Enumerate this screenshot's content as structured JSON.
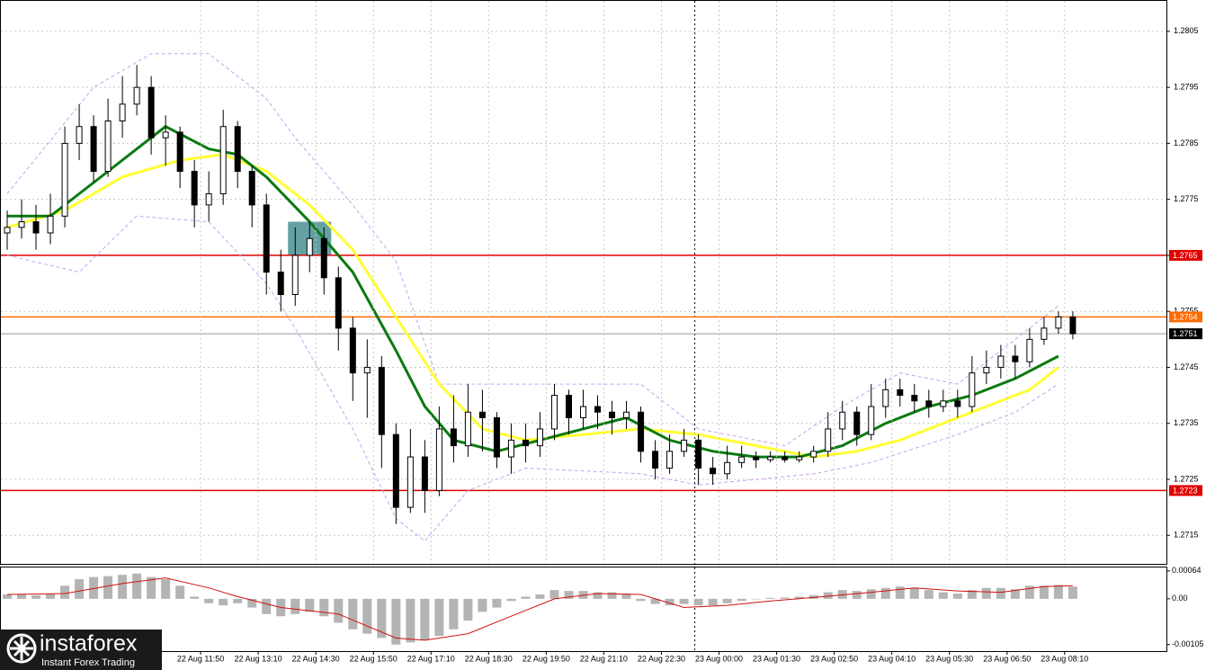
{
  "chart_data": [
    {
      "type": "candlestick",
      "xlim": [
        0,
        81
      ],
      "ylim": [
        1.27099,
        1.28106
      ],
      "yticks": [
        1.2715,
        1.2725,
        1.2735,
        1.2745,
        1.2755,
        1.2765,
        1.2775,
        1.2785,
        1.2795,
        1.2805
      ],
      "grid": true,
      "open": [
        1.2769,
        1.277,
        1.2771,
        1.2769,
        1.2772,
        1.2785,
        1.2788,
        1.278,
        1.2789,
        1.2792,
        1.2795,
        1.2786,
        1.2787,
        1.278,
        1.2774,
        1.2776,
        1.2788,
        1.278,
        1.2774,
        1.2762,
        1.2758,
        1.2765,
        1.2768,
        1.2761,
        1.2752,
        1.2744,
        1.2745,
        1.2733,
        1.272,
        1.2729,
        1.2723,
        1.2734,
        1.2731,
        1.2737,
        1.2736,
        1.2729,
        1.2732,
        1.2731,
        1.2734,
        1.274,
        1.2736,
        1.2738,
        1.2737,
        1.2736,
        1.2737,
        1.273,
        1.2727,
        1.273,
        1.2732,
        1.2727,
        1.2726,
        1.2728,
        1.2729,
        1.27285,
        1.2729,
        1.27285,
        1.2729,
        1.273,
        1.2734,
        1.2737,
        1.2733,
        1.2738,
        1.2741,
        1.274,
        1.2739,
        1.2738,
        1.2739,
        1.2738,
        1.2744,
        1.2745,
        1.2747,
        1.2746,
        1.275,
        1.2752,
        1.2754
      ],
      "high": [
        1.2773,
        1.2775,
        1.2774,
        1.2776,
        1.2788,
        1.2792,
        1.279,
        1.2793,
        1.2797,
        1.2799,
        1.2797,
        1.279,
        1.2788,
        1.2782,
        1.278,
        1.2791,
        1.2789,
        1.2781,
        1.2776,
        1.2766,
        1.277,
        1.2771,
        1.277,
        1.2763,
        1.2754,
        1.275,
        1.2747,
        1.2735,
        1.2734,
        1.2732,
        1.2738,
        1.274,
        1.2742,
        1.2741,
        1.2737,
        1.2735,
        1.2735,
        1.2737,
        1.2742,
        1.2741,
        1.2741,
        1.274,
        1.2739,
        1.2739,
        1.2738,
        1.2732,
        1.2733,
        1.2734,
        1.2733,
        1.2729,
        1.2731,
        1.2731,
        1.273,
        1.273,
        1.273,
        1.273,
        1.2731,
        1.2737,
        1.2739,
        1.2738,
        1.2742,
        1.2743,
        1.2743,
        1.2742,
        1.2741,
        1.2741,
        1.2741,
        1.2747,
        1.2748,
        1.2749,
        1.2749,
        1.2752,
        1.2754,
        1.2755,
        1.2755
      ],
      "low": [
        1.2766,
        1.2768,
        1.2766,
        1.2767,
        1.277,
        1.2782,
        1.2778,
        1.2779,
        1.2786,
        1.279,
        1.2783,
        1.2781,
        1.2777,
        1.277,
        1.2771,
        1.2774,
        1.2777,
        1.277,
        1.2758,
        1.2755,
        1.2756,
        1.2762,
        1.2758,
        1.2748,
        1.2739,
        1.2736,
        1.2727,
        1.2717,
        1.2719,
        1.2719,
        1.2722,
        1.2728,
        1.2729,
        1.273,
        1.2727,
        1.2726,
        1.2728,
        1.2729,
        1.2732,
        1.2733,
        1.2734,
        1.2734,
        1.2733,
        1.2734,
        1.2728,
        1.2725,
        1.2726,
        1.2729,
        1.2724,
        1.2724,
        1.2725,
        1.2727,
        1.2727,
        1.2728,
        1.2728,
        1.2728,
        1.2728,
        1.2729,
        1.2732,
        1.2731,
        1.2732,
        1.2736,
        1.2738,
        1.2737,
        1.2736,
        1.2737,
        1.2736,
        1.2737,
        1.2742,
        1.2743,
        1.2743,
        1.2745,
        1.2749,
        1.2751,
        1.275
      ],
      "close": [
        1.277,
        1.2771,
        1.2769,
        1.2772,
        1.2785,
        1.2788,
        1.278,
        1.2789,
        1.2792,
        1.2795,
        1.2786,
        1.2787,
        1.278,
        1.2774,
        1.2776,
        1.2788,
        1.278,
        1.2774,
        1.2762,
        1.2758,
        1.2765,
        1.2768,
        1.2761,
        1.2752,
        1.2744,
        1.2745,
        1.2733,
        1.272,
        1.2729,
        1.2723,
        1.2734,
        1.2731,
        1.2737,
        1.2736,
        1.2729,
        1.2732,
        1.2731,
        1.2734,
        1.274,
        1.2736,
        1.2738,
        1.2737,
        1.2736,
        1.2737,
        1.273,
        1.2727,
        1.273,
        1.2732,
        1.2727,
        1.2726,
        1.2728,
        1.2729,
        1.27285,
        1.2729,
        1.27285,
        1.2729,
        1.273,
        1.2734,
        1.2737,
        1.2733,
        1.2738,
        1.2741,
        1.274,
        1.2739,
        1.2738,
        1.2739,
        1.2738,
        1.2744,
        1.2745,
        1.2747,
        1.2746,
        1.275,
        1.2752,
        1.2754,
        1.2751
      ],
      "overlays": [
        {
          "color": "#c9a0f0",
          "dashed": true,
          "x": [
            0,
            6,
            10,
            14,
            18,
            20,
            24,
            27,
            30,
            33,
            38,
            44,
            48,
            54,
            58,
            62,
            66,
            70,
            73
          ],
          "values": [
            1.2776,
            1.2795,
            1.2801,
            1.2801,
            1.2793,
            1.2786,
            1.2774,
            1.2764,
            1.2742,
            1.2742,
            1.2742,
            1.2742,
            1.2734,
            1.2731,
            1.2738,
            1.2744,
            1.2742,
            1.275,
            1.2756
          ]
        },
        {
          "color": "#c9a0f0",
          "dashed": true,
          "x": [
            0,
            5,
            9,
            14,
            18,
            20,
            24,
            27,
            29,
            32,
            36,
            44,
            48,
            52,
            56,
            60,
            66,
            70,
            73
          ],
          "values": [
            1.2765,
            1.2762,
            1.2772,
            1.2771,
            1.276,
            1.2752,
            1.2734,
            1.2718,
            1.2714,
            1.2723,
            1.2727,
            1.2726,
            1.2724,
            1.2725,
            1.2726,
            1.2728,
            1.2733,
            1.2737,
            1.2742
          ]
        },
        {
          "color": "#ffff33",
          "dashed": false,
          "x": [
            0,
            4,
            8,
            12,
            15,
            18,
            21,
            24,
            27,
            30,
            33,
            36,
            40,
            44,
            48,
            52,
            56,
            59,
            62,
            65,
            68,
            71,
            73
          ],
          "values": [
            1.277,
            1.2773,
            1.2779,
            1.2782,
            1.2783,
            1.278,
            1.2774,
            1.2766,
            1.2754,
            1.2742,
            1.2734,
            1.2732,
            1.2733,
            1.2734,
            1.2733,
            1.2731,
            1.2729,
            1.273,
            1.2732,
            1.2735,
            1.2738,
            1.2741,
            1.2745
          ]
        },
        {
          "color": "#0a7a10",
          "dashed": false,
          "x": [
            0,
            3,
            6,
            9,
            11,
            14,
            16,
            18,
            21,
            24,
            27,
            29,
            31,
            34,
            37,
            40,
            43,
            46,
            49,
            52,
            55,
            58,
            61,
            64,
            67,
            70,
            73
          ],
          "values": [
            1.2772,
            1.2772,
            1.2778,
            1.2784,
            1.2788,
            1.2784,
            1.2783,
            1.2779,
            1.2771,
            1.2762,
            1.2748,
            1.2738,
            1.2732,
            1.273,
            1.2732,
            1.2734,
            1.2736,
            1.2732,
            1.273,
            1.2729,
            1.2729,
            1.2731,
            1.2735,
            1.2738,
            1.274,
            1.2743,
            1.2747
          ]
        }
      ],
      "levels": [
        {
          "value": 1.2765,
          "color": "#e00000"
        },
        {
          "value": 1.2754,
          "color": "#ff6a00"
        },
        {
          "value": 1.2751,
          "color": "#000000"
        },
        {
          "value": 1.2723,
          "color": "#e00000"
        }
      ],
      "highlight": {
        "xlim": [
          20,
          23
        ],
        "ylim": [
          1.2765,
          1.2771
        ],
        "color": "#3d8a8f"
      },
      "vline": 48.25
    },
    {
      "type": "macd",
      "xlim": [
        0,
        81
      ],
      "ylim": [
        -0.0012,
        0.00074
      ],
      "color": "#b4b4b4",
      "signal_color": "#d01010",
      "yticks": [
        0.00064,
        {
          "value": 0,
          "label": "0.00"
        },
        -0.00105
      ],
      "xticks": [
        {
          "value": 13.93,
          "label": "22 Aug 11:50"
        },
        {
          "value": 17.93,
          "label": "22 Aug 13:10"
        },
        {
          "value": 21.93,
          "label": "22 Aug 14:30"
        },
        {
          "value": 25.93,
          "label": "22 Aug 15:50"
        },
        {
          "value": 29.93,
          "label": "22 Aug 17:10"
        },
        {
          "value": 33.93,
          "label": "22 Aug 18:30"
        },
        {
          "value": 37.93,
          "label": "22 Aug 19:50"
        },
        {
          "value": 41.93,
          "label": "22 Aug 21:10"
        },
        {
          "value": 45.93,
          "label": "22 Aug 22:30"
        },
        {
          "value": 49.93,
          "label": "23 Aug 00:00"
        },
        {
          "value": 53.93,
          "label": "23 Aug 01:30"
        },
        {
          "value": 57.93,
          "label": "23 Aug 02:50"
        },
        {
          "value": 61.93,
          "label": "23 Aug 04:10"
        },
        {
          "value": 65.93,
          "label": "23 Aug 05:30"
        },
        {
          "value": 69.93,
          "label": "23 Aug 06:50"
        },
        {
          "value": 73.93,
          "label": "23 Aug 08:10"
        }
      ],
      "values": [
        0.0001,
        0.0001,
        8e-05,
        0.00012,
        0.0003,
        0.00045,
        0.0005,
        0.00052,
        0.00055,
        0.00058,
        0.0005,
        0.00045,
        0.0003,
        5e-05,
        -0.0001,
        -0.00015,
        -0.0001,
        -0.0002,
        -0.00035,
        -0.0004,
        -0.00035,
        -0.0003,
        -0.0004,
        -0.00055,
        -0.0007,
        -0.0008,
        -0.0009,
        -0.00105,
        -0.001,
        -0.00095,
        -0.00085,
        -0.0007,
        -0.0005,
        -0.0003,
        -0.0002,
        -5e-05,
        5e-05,
        0.0001,
        0.0002,
        0.00018,
        0.00018,
        0.00015,
        0.00015,
        0.00012,
        -5e-05,
        -0.00012,
        -0.00015,
        -0.00012,
        -0.00015,
        -0.00015,
        -0.0001,
        -5e-05,
        0,
        2e-05,
        3e-05,
        5e-05,
        8e-05,
        0.00015,
        0.0002,
        0.00018,
        0.00022,
        0.00025,
        0.00028,
        0.00025,
        0.0002,
        0.00015,
        0.00012,
        0.0002,
        0.00025,
        0.00025,
        0.00022,
        0.0003,
        0.0003,
        0.00032,
        0.00028
      ],
      "signal": {
        "x": [
          0,
          4,
          8,
          11,
          14,
          16,
          19,
          23,
          27,
          29,
          32,
          35,
          38,
          41,
          44,
          47,
          50,
          53,
          56,
          60,
          63,
          66,
          69,
          72,
          74
        ],
        "values": [
          0.0001,
          0.00012,
          0.00035,
          0.00048,
          0.00025,
          5e-05,
          -0.0002,
          -0.00035,
          -0.0009,
          -0.00095,
          -0.0008,
          -0.0004,
          0,
          0.00012,
          0.0001,
          -0.0002,
          -0.00015,
          -5e-05,
          3e-05,
          0.00015,
          0.00025,
          0.00018,
          0.00015,
          0.00028,
          0.0003
        ]
      }
    }
  ],
  "logo": {
    "name": "instaforex",
    "tagline": "Instant Forex Trading"
  }
}
